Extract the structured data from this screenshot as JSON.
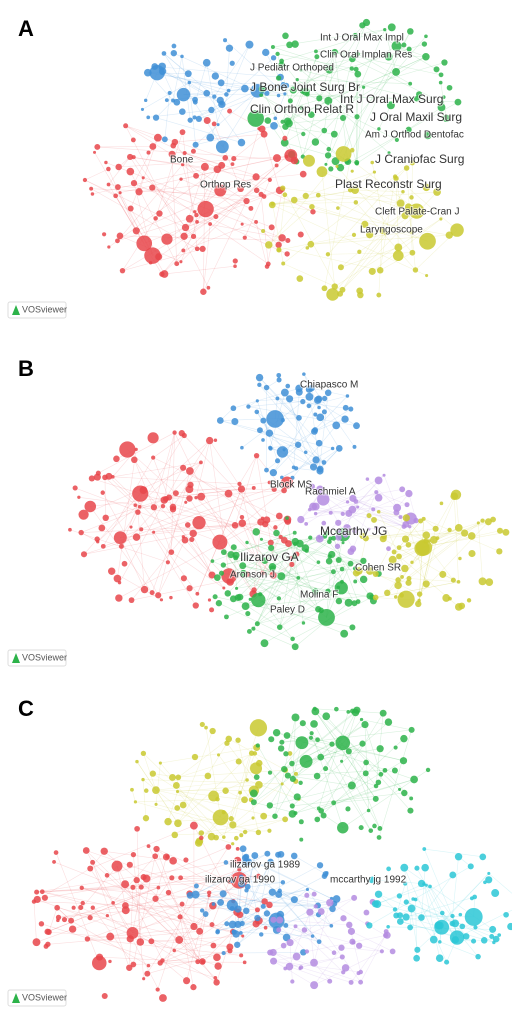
{
  "panels": [
    {
      "label": "A",
      "watermark": "VOSviewer",
      "nodes": [
        {
          "label": "Int J Oral Max Impl"
        },
        {
          "label": "Clin Oral Implan Res"
        },
        {
          "label": "J Pediatr Orthoped"
        },
        {
          "label": "J Bone Joint Surg Br"
        },
        {
          "label": "Clin Orthop Relat R"
        },
        {
          "label": "Int J Oral Max Surg"
        },
        {
          "label": "J Oral Maxil Surg"
        },
        {
          "label": "Am J Orthod Dentofac"
        },
        {
          "label": "J Craniofac Surg"
        },
        {
          "label": "Bone"
        },
        {
          "label": "Orthop Res"
        },
        {
          "label": "Plast Reconstr Surg"
        },
        {
          "label": "Cleft Palate-Cran J"
        },
        {
          "label": "Laryngoscope"
        }
      ]
    },
    {
      "label": "B",
      "watermark": "VOSviewer",
      "nodes": [
        {
          "label": "Chiapasco M"
        },
        {
          "label": "Block MS"
        },
        {
          "label": "Rachmiel A"
        },
        {
          "label": "Mccarthy JG"
        },
        {
          "label": "Ilizarov GA"
        },
        {
          "label": "Aronson J"
        },
        {
          "label": "Cohen SR"
        },
        {
          "label": "Molina F"
        },
        {
          "label": "Paley D"
        }
      ]
    },
    {
      "label": "C",
      "watermark": "VOSviewer",
      "nodes": [
        {
          "label": "ilizarov ga 1989"
        },
        {
          "label": "ilizarov ga 1990"
        },
        {
          "label": "mccarthy jg 1992"
        }
      ]
    }
  ]
}
